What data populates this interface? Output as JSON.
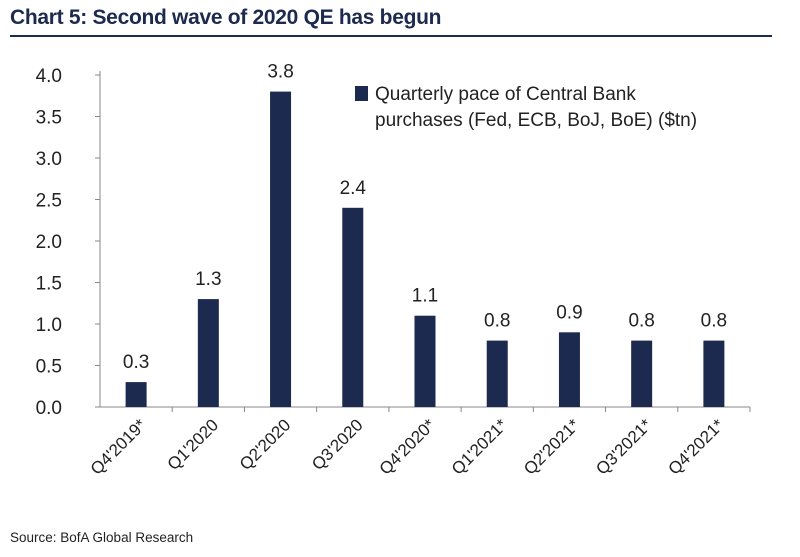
{
  "title": "Chart 5: Second wave of 2020 QE has begun",
  "source": "Source: BofA Global Research",
  "colors": {
    "bar": "#1b2a4e",
    "title": "#1b2a4e",
    "text": "#222222",
    "axis": "#888888"
  },
  "chart_data": {
    "type": "bar",
    "categories": [
      "Q4'2019*",
      "Q1'2020",
      "Q2'2020",
      "Q3'2020",
      "Q4'2020*",
      "Q1'2021*",
      "Q2'2021*",
      "Q3'2021*",
      "Q4'2021*"
    ],
    "series": [
      {
        "name": "Quarterly pace of Central Bank purchases (Fed, ECB, BoJ, BoE) ($tn)",
        "values": [
          0.3,
          1.3,
          3.8,
          2.4,
          1.1,
          0.8,
          0.9,
          0.8,
          0.8
        ]
      }
    ],
    "data_labels": [
      "0.3",
      "1.3",
      "3.8",
      "2.4",
      "1.1",
      "0.8",
      "0.9",
      "0.8",
      "0.8"
    ],
    "y_ticks": [
      "0.0",
      "0.5",
      "1.0",
      "1.5",
      "2.0",
      "2.5",
      "3.0",
      "3.5",
      "4.0"
    ],
    "ylim": [
      0,
      4.0
    ],
    "legend": {
      "line1": "Quarterly pace of Central Bank",
      "line2": "purchases (Fed, ECB, BoJ, BoE) ($tn)",
      "position": "top-right"
    },
    "grid": false
  }
}
